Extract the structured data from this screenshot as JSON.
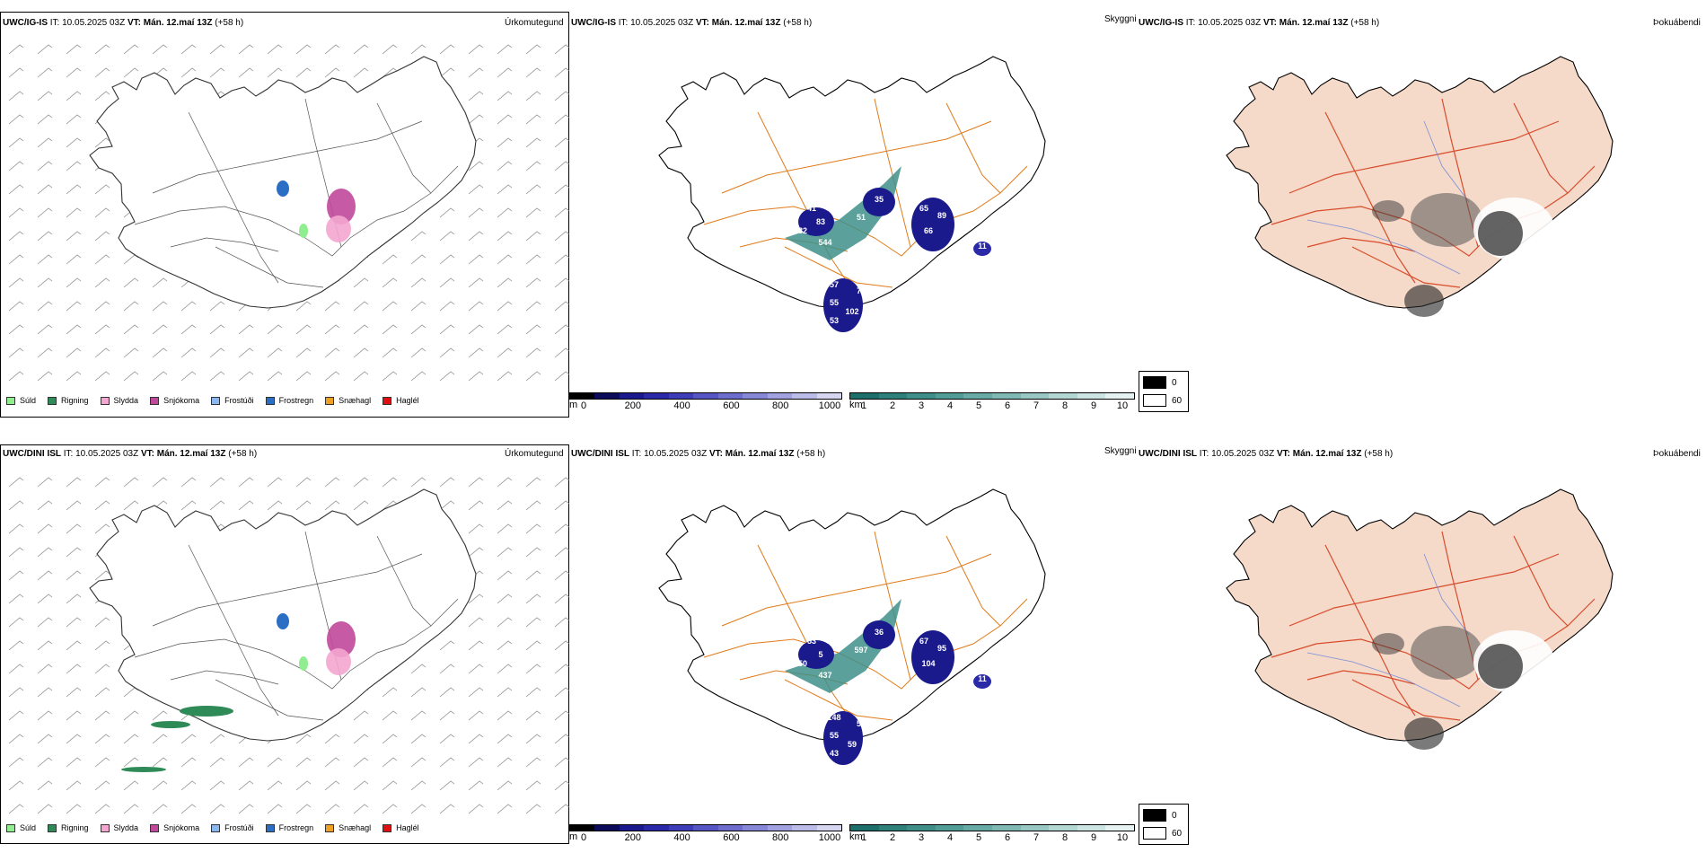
{
  "rows": [
    {
      "model": "UWC/IG-IS",
      "it_label": "IT:",
      "it_value": "10.05.2025 03Z",
      "vt_label": "VT:",
      "vt_value": "Mán. 12.maí 13Z",
      "lead": "(+58 h)",
      "panels": {
        "precip": {
          "title": "Úrkomutegund"
        },
        "cloud": {
          "title": "Skyggni",
          "numbers": [
            "35",
            "41",
            "83",
            "82",
            "51",
            "544",
            "65",
            "89",
            "66",
            "11",
            "57",
            "76",
            "55",
            "102",
            "53"
          ]
        },
        "vis": {
          "title": "Þokuábendi"
        }
      }
    },
    {
      "model": "UWC/DINI ISL",
      "it_label": "IT:",
      "it_value": "10.05.2025 03Z",
      "vt_label": "VT:",
      "vt_value": "Mán. 12.maí 13Z",
      "lead": "(+58 h)",
      "panels": {
        "precip": {
          "title": "Úrkomutegund"
        },
        "cloud": {
          "title": "Skyggni",
          "numbers": [
            "36",
            "53",
            "5",
            "50",
            "597",
            "437",
            "67",
            "95",
            "104",
            "11",
            "148",
            "52",
            "55",
            "59",
            "43"
          ]
        },
        "vis": {
          "title": "Þokuábendi"
        }
      }
    }
  ],
  "precip_legend": [
    {
      "label": "Súld",
      "color": "#90ee90"
    },
    {
      "label": "Rigning",
      "color": "#2e8b57"
    },
    {
      "label": "Slydda",
      "color": "#f4a6d0"
    },
    {
      "label": "Snjókoma",
      "color": "#c0489a"
    },
    {
      "label": "Frostúði",
      "color": "#87b8f0"
    },
    {
      "label": "Frostregn",
      "color": "#2a6fc4"
    },
    {
      "label": "Snæhagl",
      "color": "#f0a020"
    },
    {
      "label": "Haglél",
      "color": "#e01010"
    }
  ],
  "cloudbase_bar": {
    "unit": "m",
    "ticks": [
      "0",
      "200",
      "400",
      "600",
      "800",
      "1000"
    ],
    "colors": [
      "#000000",
      "#0b0b5a",
      "#1a1a8c",
      "#2a2aa8",
      "#3d3db8",
      "#5555c4",
      "#6d6dce",
      "#8787d8",
      "#a2a2e0",
      "#bcbce8",
      "#d6d6f0"
    ]
  },
  "visibility_bar": {
    "unit": "km",
    "ticks": [
      "1",
      "2",
      "3",
      "4",
      "5",
      "6",
      "7",
      "8",
      "9",
      "10"
    ],
    "colors": [
      "#1c6f6a",
      "#2e807a",
      "#3e8f89",
      "#529c97",
      "#68aaa5",
      "#80b9b4",
      "#99c8c4",
      "#b3d7d3",
      "#cde5e2",
      "#e6f2f1"
    ]
  },
  "fog_legend": [
    {
      "label": "0",
      "color": "#000000"
    },
    {
      "label": "60",
      "color": "#ffffff"
    }
  ],
  "colors": {
    "island_land_fog": "#f5d9c9",
    "roads_cloud": "#e07b1a",
    "roads_fog": "#d84c2c",
    "rivers_fog": "#7a8fd6",
    "coast": "#000000",
    "roads_precip": "#555555"
  }
}
